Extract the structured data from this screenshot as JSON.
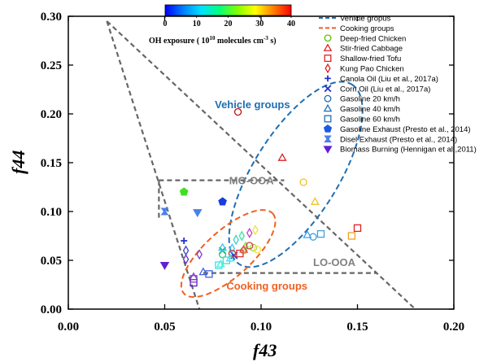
{
  "chart_data": {
    "type": "scatter",
    "xlabel": "f43",
    "ylabel": "f44",
    "xlim": [
      0.0,
      0.2
    ],
    "ylim": [
      0.0,
      0.3
    ],
    "xticks": [
      "0.00",
      "0.05",
      "0.10",
      "0.15",
      "0.20"
    ],
    "yticks": [
      "0.00",
      "0.05",
      "0.10",
      "0.15",
      "0.20",
      "0.25",
      "0.30"
    ],
    "colorbar": {
      "label_main": "OH exposure ( 10",
      "label_exp1": "10",
      "label_mid": " molecules cm",
      "label_exp2": "-3",
      "label_end": " s)",
      "range": [
        0,
        40
      ],
      "ticks": [
        "0",
        "10",
        "20",
        "30",
        "40"
      ],
      "colors": [
        "#0000ff",
        "#0080ff",
        "#00e0ff",
        "#00ff80",
        "#80ff00",
        "#ffff00",
        "#ff8000",
        "#ff0000"
      ]
    },
    "triangle": [
      [
        0.02,
        0.295
      ],
      [
        0.068,
        0.0
      ],
      [
        0.18,
        0.0
      ]
    ],
    "region_labels": {
      "mo": {
        "text": "MO-OOA",
        "x": 0.095,
        "y": 0.128
      },
      "lo": {
        "text": "LO-OOA",
        "x": 0.138,
        "y": 0.044
      },
      "vehicle": {
        "text": "Vehicle groups",
        "x": 0.076,
        "y": 0.206
      },
      "cooking": {
        "text": "Cooking groups",
        "x": 0.082,
        "y": 0.02
      }
    },
    "mo_box": {
      "y": 0.132,
      "x": [
        0.047,
        0.112
      ]
    },
    "lo_line": {
      "y": 0.037,
      "x": [
        0.07,
        0.16
      ]
    },
    "vehicle_ellipse": {
      "cx": 0.118,
      "cy": 0.138,
      "rx": 0.055,
      "ry": 0.022,
      "angle": 58,
      "color": "#1e6eb4"
    },
    "cooking_ellipse": {
      "cx": 0.083,
      "cy": 0.057,
      "rx": 0.031,
      "ry": 0.012,
      "angle": 42,
      "color": "#f06020"
    },
    "legend": [
      {
        "label": "Vehicle gropus",
        "marker": "dashed",
        "color": "#1e6eb4"
      },
      {
        "label": "Cooking groups",
        "marker": "dashed",
        "color": "#f06020"
      },
      {
        "label": "Deep-fried Chicken",
        "marker": "circle",
        "color": "#60c000"
      },
      {
        "label": "Stir-fried Cabbage",
        "marker": "triangle",
        "color": "#e02020"
      },
      {
        "label": "Shallow-fried Tofu",
        "marker": "square",
        "color": "#e02020"
      },
      {
        "label": "Kung Pao Chicken",
        "marker": "diamond",
        "color": "#e02020"
      },
      {
        "label": "Canola Oil (Liu et al., 2017a)",
        "marker": "plus",
        "color": "#2030d0"
      },
      {
        "label": "Corn Oil (Liu et al., 2017a)",
        "marker": "cross",
        "color": "#2030d0"
      },
      {
        "label": "Gasoline 20 km/h",
        "marker": "circle",
        "color": "#1e6eb4"
      },
      {
        "label": "Gasoline 40 km/h",
        "marker": "triangle",
        "color": "#1e6eb4"
      },
      {
        "label": "Gasoline 60 km/h",
        "marker": "square",
        "color": "#1e6eb4"
      },
      {
        "label": "Gasoline Exhaust (Presto et al., 2014)",
        "marker": "pentagon",
        "color": "#1a5ce0"
      },
      {
        "label": "Disel Exhaust (Presto et al., 2014)",
        "marker": "bowtie",
        "color": "#4a80e8"
      },
      {
        "label": "Biomass Burning (Hennigan et al.,2011)",
        "marker": "invtriangle",
        "color": "#6020d0"
      }
    ],
    "points": [
      {
        "m": "circle",
        "x": 0.088,
        "y": 0.202,
        "c": "#c01010"
      },
      {
        "m": "triangle",
        "x": 0.111,
        "y": 0.155,
        "c": "#e02020"
      },
      {
        "m": "circle",
        "x": 0.122,
        "y": 0.13,
        "c": "#f0c020"
      },
      {
        "m": "triangle",
        "x": 0.128,
        "y": 0.11,
        "c": "#f0c020"
      },
      {
        "m": "square",
        "x": 0.15,
        "y": 0.083,
        "c": "#e02020"
      },
      {
        "m": "square",
        "x": 0.147,
        "y": 0.075,
        "c": "#f0a020"
      },
      {
        "m": "triangle",
        "x": 0.124,
        "y": 0.076,
        "c": "#40a0e0"
      },
      {
        "m": "circle",
        "x": 0.127,
        "y": 0.074,
        "c": "#40a0e0"
      },
      {
        "m": "square",
        "x": 0.131,
        "y": 0.077,
        "c": "#40a0e0"
      },
      {
        "m": "pentagon",
        "x": 0.06,
        "y": 0.12,
        "c": "#40e020",
        "f": true
      },
      {
        "m": "pentagon",
        "x": 0.08,
        "y": 0.11,
        "c": "#1a3ce0",
        "f": true
      },
      {
        "m": "bowtie",
        "x": 0.05,
        "y": 0.1,
        "c": "#4a80e8",
        "f": true
      },
      {
        "m": "invtriangle",
        "x": 0.067,
        "y": 0.099,
        "c": "#4a80e8",
        "f": true
      },
      {
        "m": "invtriangle",
        "x": 0.05,
        "y": 0.045,
        "c": "#6020d0",
        "f": true
      },
      {
        "m": "plus",
        "x": 0.06,
        "y": 0.07,
        "c": "#2030d0"
      },
      {
        "m": "cross",
        "x": 0.08,
        "y": 0.06,
        "c": "#00c060"
      },
      {
        "m": "cross",
        "x": 0.086,
        "y": 0.055,
        "c": "#2030d0"
      },
      {
        "m": "diamond",
        "x": 0.061,
        "y": 0.06,
        "c": "#4040d0"
      },
      {
        "m": "diamond",
        "x": 0.061,
        "y": 0.051,
        "c": "#6030c0"
      },
      {
        "m": "diamond",
        "x": 0.068,
        "y": 0.056,
        "c": "#8040c0"
      },
      {
        "m": "diamond",
        "x": 0.087,
        "y": 0.071,
        "c": "#40d0c0"
      },
      {
        "m": "diamond",
        "x": 0.09,
        "y": 0.075,
        "c": "#40e0a0"
      },
      {
        "m": "diamond",
        "x": 0.094,
        "y": 0.078,
        "c": "#c040d0"
      },
      {
        "m": "diamond",
        "x": 0.097,
        "y": 0.081,
        "c": "#f0e040"
      },
      {
        "m": "diamond",
        "x": 0.092,
        "y": 0.064,
        "c": "#80e040"
      },
      {
        "m": "diamond",
        "x": 0.085,
        "y": 0.062,
        "c": "#40c0f0"
      },
      {
        "m": "circle",
        "x": 0.08,
        "y": 0.056,
        "c": "#40c080"
      },
      {
        "m": "circle",
        "x": 0.085,
        "y": 0.057,
        "c": "#c04040"
      },
      {
        "m": "circle",
        "x": 0.091,
        "y": 0.06,
        "c": "#80e040"
      },
      {
        "m": "circle",
        "x": 0.096,
        "y": 0.063,
        "c": "#a0e040"
      },
      {
        "m": "circle",
        "x": 0.098,
        "y": 0.061,
        "c": "#f0e040"
      },
      {
        "m": "circle",
        "x": 0.094,
        "y": 0.065,
        "c": "#c04040"
      },
      {
        "m": "square",
        "x": 0.082,
        "y": 0.05,
        "c": "#40e0c0"
      },
      {
        "m": "square",
        "x": 0.078,
        "y": 0.045,
        "c": "#40e0e0"
      },
      {
        "m": "square",
        "x": 0.089,
        "y": 0.057,
        "c": "#e03030"
      },
      {
        "m": "square",
        "x": 0.073,
        "y": 0.036,
        "c": "#4060e0"
      },
      {
        "m": "square",
        "x": 0.065,
        "y": 0.027,
        "c": "#6020c0"
      },
      {
        "m": "square",
        "x": 0.065,
        "y": 0.031,
        "c": "#8040c0"
      },
      {
        "m": "triangle",
        "x": 0.08,
        "y": 0.063,
        "c": "#40c0f0"
      },
      {
        "m": "triangle",
        "x": 0.084,
        "y": 0.052,
        "c": "#40e0f0"
      },
      {
        "m": "triangle",
        "x": 0.07,
        "y": 0.038,
        "c": "#4060e0"
      },
      {
        "m": "triangle",
        "x": 0.065,
        "y": 0.033,
        "c": "#8040c0"
      },
      {
        "m": "triangle",
        "x": 0.079,
        "y": 0.046,
        "c": "#40f0e0"
      },
      {
        "m": "triangle",
        "x": 0.091,
        "y": 0.061,
        "c": "#f04040"
      }
    ]
  }
}
